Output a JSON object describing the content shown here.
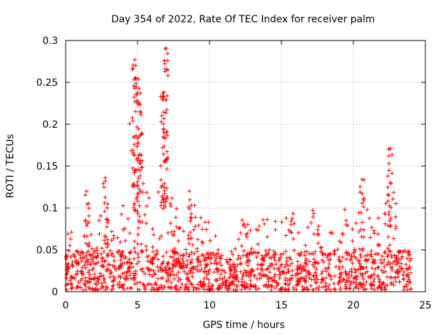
{
  "chart_data": {
    "type": "scatter",
    "title": "Day 354 of 2022, Rate Of TEC Index for receiver palm",
    "xlabel": "GPS time / hours",
    "ylabel": "ROTI / TECUs",
    "xlim": [
      0,
      25
    ],
    "ylim": [
      0,
      0.3
    ],
    "xticks": [
      0,
      5,
      10,
      15,
      20,
      25
    ],
    "xtick_labels": [
      "0",
      "5",
      "10",
      "15",
      "20",
      "25"
    ],
    "yticks": [
      0,
      0.05,
      0.1,
      0.15,
      0.2,
      0.25,
      0.3
    ],
    "ytick_labels": [
      "0",
      "0.05",
      "0.1",
      "0.15",
      "0.2",
      "0.25",
      "0.3"
    ],
    "grid": true,
    "marker": "+",
    "color": "#ff0000",
    "series": [
      {
        "name": "ROTI",
        "x_range": [
          0,
          24
        ],
        "baseline_envelope": [
          [
            0.0,
            0.04
          ],
          [
            0.3,
            0.1
          ],
          [
            0.6,
            0.06
          ],
          [
            1.0,
            0.06
          ],
          [
            1.5,
            0.12
          ],
          [
            2.0,
            0.06
          ],
          [
            2.8,
            0.135
          ],
          [
            3.5,
            0.07
          ],
          [
            4.2,
            0.16
          ],
          [
            4.7,
            0.28
          ],
          [
            5.1,
            0.25
          ],
          [
            5.5,
            0.14
          ],
          [
            6.0,
            0.09
          ],
          [
            6.6,
            0.17
          ],
          [
            6.9,
            0.29
          ],
          [
            7.2,
            0.12
          ],
          [
            7.8,
            0.1
          ],
          [
            8.6,
            0.12
          ],
          [
            9.5,
            0.09
          ],
          [
            10.2,
            0.09
          ],
          [
            11.0,
            0.04
          ],
          [
            11.8,
            0.06
          ],
          [
            12.5,
            0.1
          ],
          [
            13.2,
            0.09
          ],
          [
            14.0,
            0.09
          ],
          [
            15.0,
            0.09
          ],
          [
            15.7,
            0.1
          ],
          [
            16.5,
            0.07
          ],
          [
            17.3,
            0.1
          ],
          [
            18.0,
            0.06
          ],
          [
            18.8,
            0.08
          ],
          [
            19.5,
            0.1
          ],
          [
            20.0,
            0.09
          ],
          [
            20.6,
            0.13
          ],
          [
            21.2,
            0.08
          ],
          [
            22.0,
            0.09
          ],
          [
            22.6,
            0.17
          ],
          [
            23.2,
            0.08
          ],
          [
            24.0,
            0.04
          ]
        ],
        "peaks": [
          {
            "x": 4.8,
            "y": 0.277
          },
          {
            "x": 5.05,
            "y": 0.254
          },
          {
            "x": 6.95,
            "y": 0.291
          },
          {
            "x": 6.75,
            "y": 0.237
          },
          {
            "x": 5.15,
            "y": 0.215
          },
          {
            "x": 22.55,
            "y": 0.171
          },
          {
            "x": 2.75,
            "y": 0.136
          },
          {
            "x": 20.6,
            "y": 0.134
          },
          {
            "x": 1.45,
            "y": 0.12
          },
          {
            "x": 8.6,
            "y": 0.12
          }
        ]
      }
    ]
  }
}
